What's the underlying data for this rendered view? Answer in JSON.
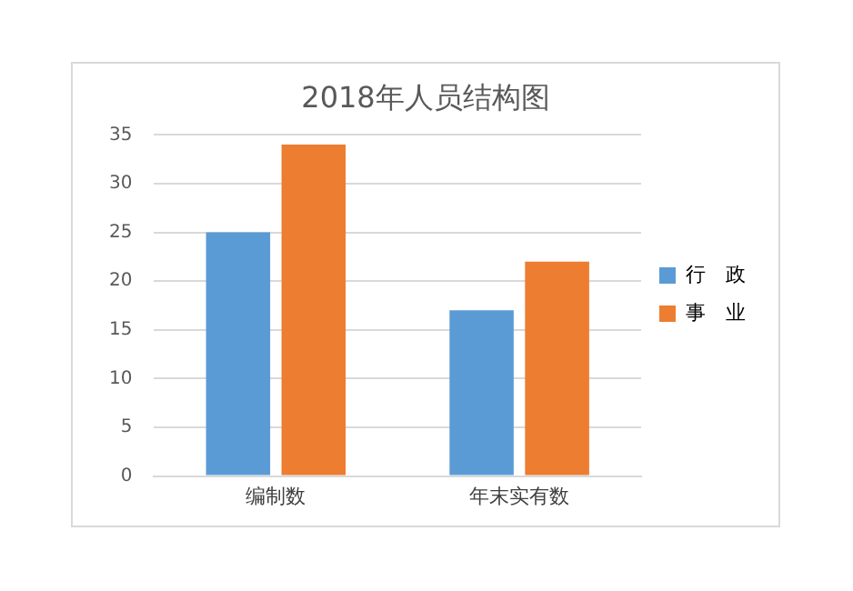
{
  "chart_data": {
    "type": "bar",
    "title": "2018年人员结构图",
    "categories": [
      "编制数",
      "年末实有数"
    ],
    "series": [
      {
        "name": "行　政",
        "color": "#5b9bd5",
        "values": [
          25,
          17
        ]
      },
      {
        "name": "事　业",
        "color": "#ed7d31",
        "values": [
          34,
          22
        ]
      }
    ],
    "ylim": [
      0,
      35
    ],
    "yticks": [
      0,
      5,
      10,
      15,
      20,
      25,
      30,
      35
    ],
    "grid": "y",
    "legend": "right"
  }
}
